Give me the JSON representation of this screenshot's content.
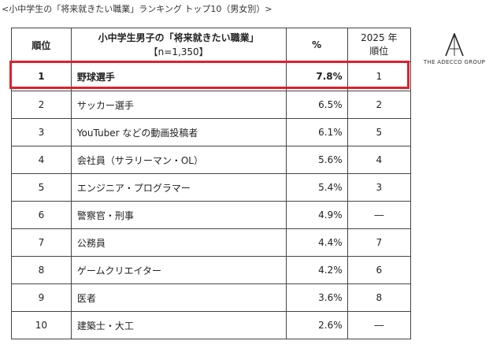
{
  "caption": "<小中学生の「将来就きたい職業」ランキング トップ10（男女別）>",
  "header": {
    "rank": "順位",
    "title": "小中学生男子の「将来就きたい職業」",
    "sample": "【n=1,350】",
    "pct": "%",
    "prev_year": "2025 年",
    "prev_rank": "順位"
  },
  "rows": [
    {
      "rank": "1",
      "job": "野球選手",
      "pct": "7.8%",
      "prev": "1"
    },
    {
      "rank": "2",
      "job": "サッカー選手",
      "pct": "6.5%",
      "prev": "2"
    },
    {
      "rank": "3",
      "job": "YouTuber などの動画投稿者",
      "pct": "6.1%",
      "prev": "5"
    },
    {
      "rank": "4",
      "job": "会社員（サラリーマン・OL）",
      "pct": "5.6%",
      "prev": "4"
    },
    {
      "rank": "5",
      "job": "エンジニア・プログラマー",
      "pct": "5.4%",
      "prev": "3"
    },
    {
      "rank": "6",
      "job": "警察官・刑事",
      "pct": "4.9%",
      "prev": "―"
    },
    {
      "rank": "7",
      "job": "公務員",
      "pct": "4.4%",
      "prev": "7"
    },
    {
      "rank": "8",
      "job": "ゲームクリエイター",
      "pct": "4.2%",
      "prev": "6"
    },
    {
      "rank": "9",
      "job": "医者",
      "pct": "3.6%",
      "prev": "8"
    },
    {
      "rank": "10",
      "job": "建築士・大工",
      "pct": "2.6%",
      "prev": "―"
    }
  ],
  "logo": {
    "text": "THE ADECCO GROUP",
    "icon": "adecco-a-logo-icon"
  },
  "colors": {
    "highlight": "#e0202a",
    "border": "#444444"
  }
}
